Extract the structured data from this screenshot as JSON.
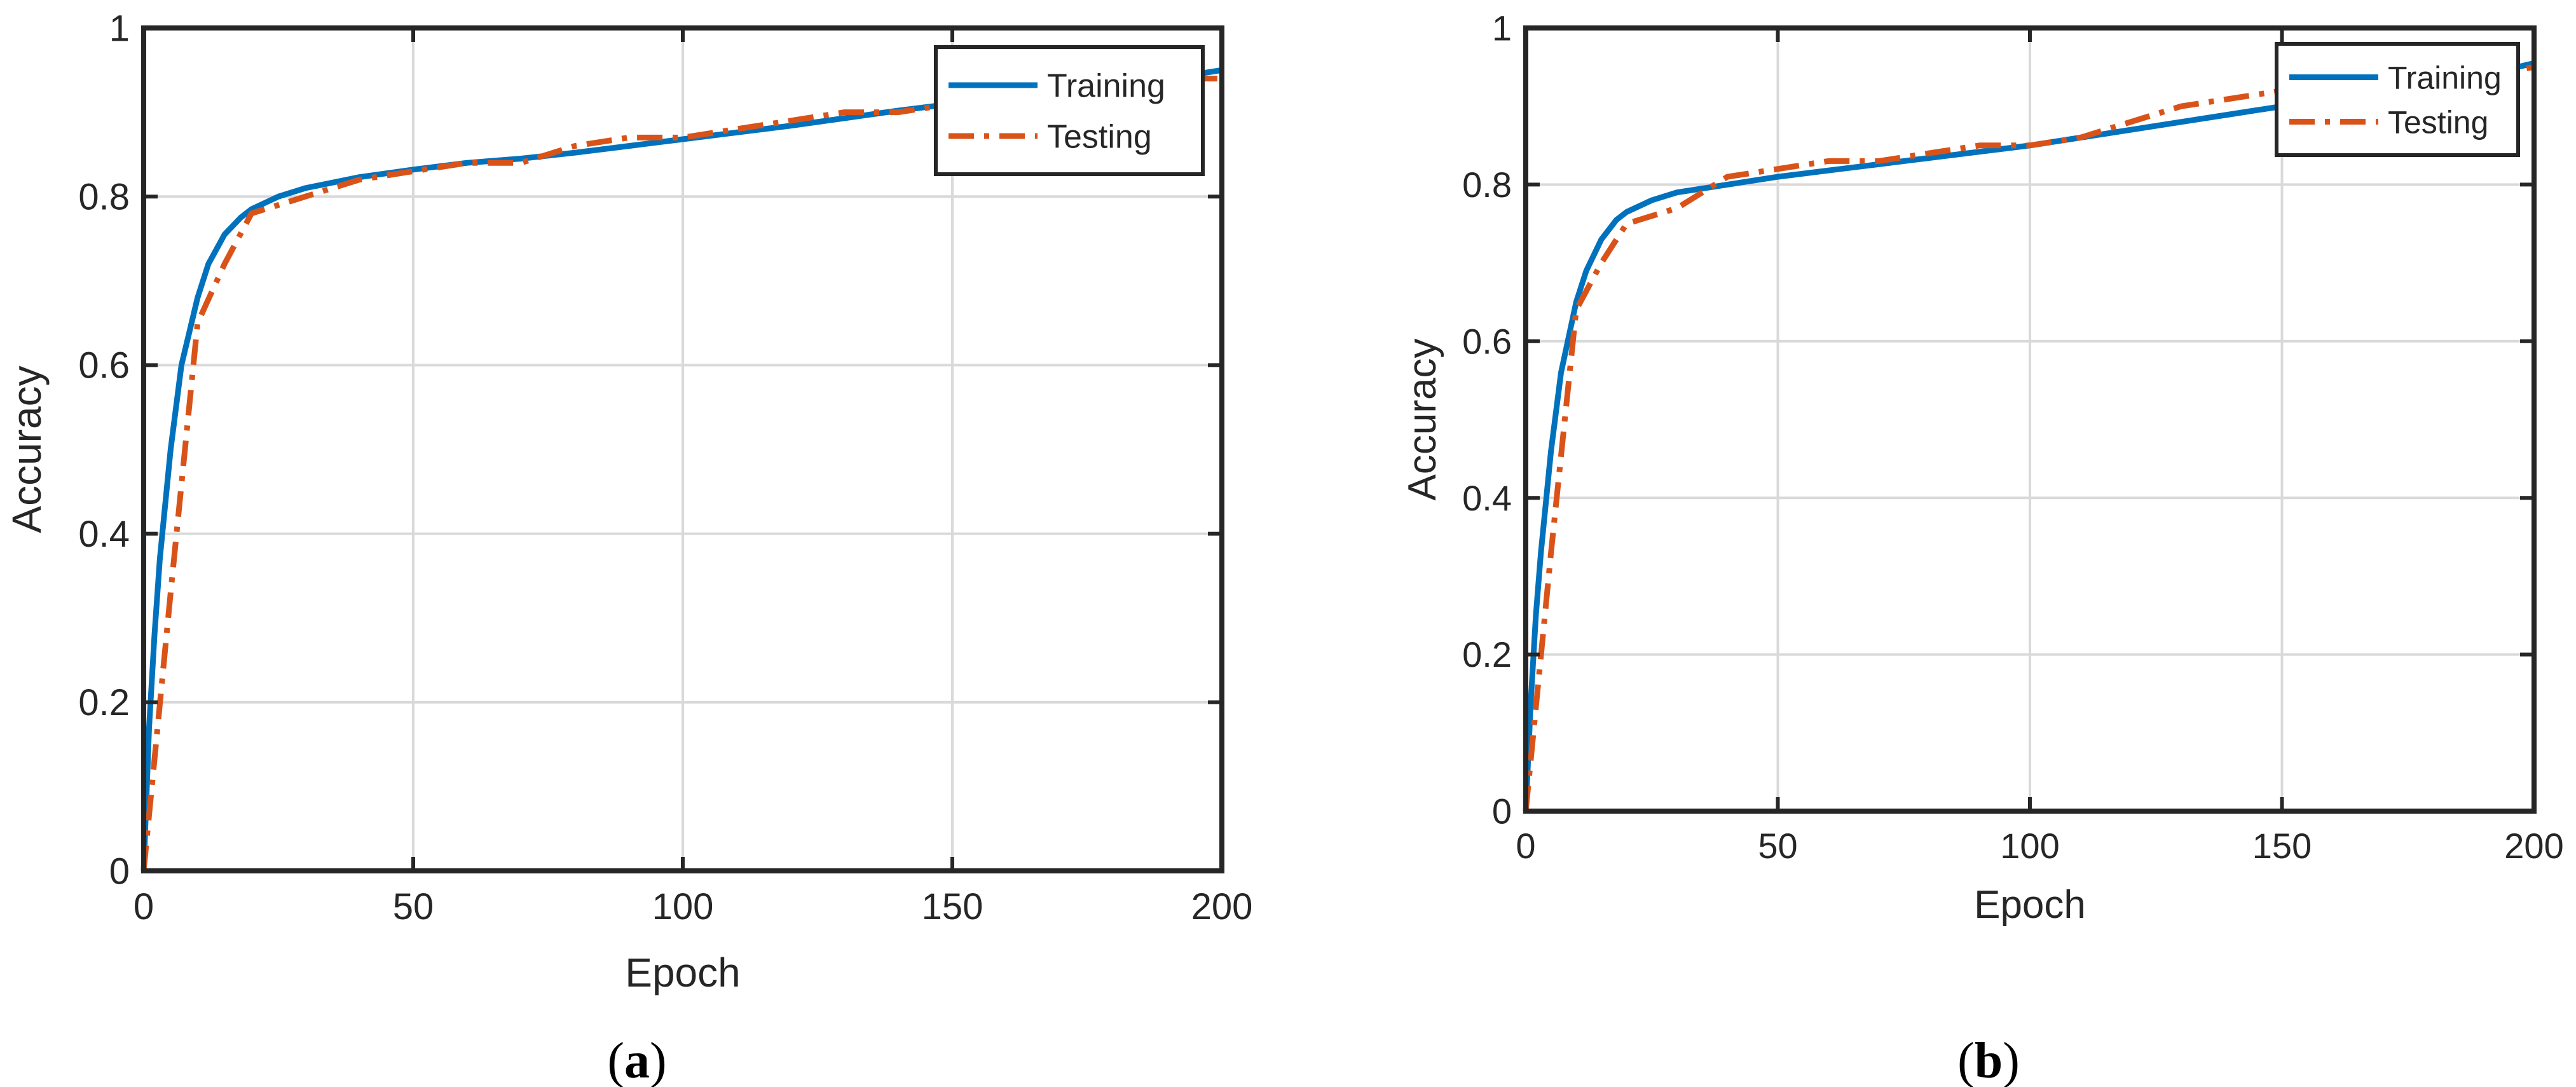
{
  "chart_data": [
    {
      "type": "line",
      "panel_label": "(a)",
      "title": "",
      "xlabel": "Epoch",
      "ylabel": "Accuracy",
      "xlim": [
        0,
        200
      ],
      "ylim": [
        0,
        1
      ],
      "x_ticks": [
        "0",
        "50",
        "100",
        "150",
        "200"
      ],
      "y_ticks": [
        "0",
        "0.2",
        "0.4",
        "0.6",
        "0.8",
        "1"
      ],
      "grid": true,
      "legend_position": "top-right",
      "series": [
        {
          "name": "Training",
          "color": "#0072BD",
          "line_style": "solid",
          "x": [
            0,
            1,
            2,
            3,
            5,
            7,
            10,
            12,
            15,
            18,
            20,
            25,
            30,
            40,
            50,
            60,
            70,
            80,
            90,
            100,
            110,
            120,
            130,
            140,
            150,
            160,
            170,
            180,
            190,
            200
          ],
          "y": [
            0.0,
            0.17,
            0.28,
            0.37,
            0.5,
            0.6,
            0.68,
            0.72,
            0.755,
            0.775,
            0.785,
            0.8,
            0.81,
            0.823,
            0.832,
            0.84,
            0.845,
            0.852,
            0.86,
            0.868,
            0.876,
            0.884,
            0.893,
            0.902,
            0.91,
            0.918,
            0.926,
            0.933,
            0.94,
            0.95
          ]
        },
        {
          "name": "Testing",
          "color": "#D95319",
          "line_style": "dash-dot",
          "x": [
            0,
            5,
            10,
            15,
            20,
            30,
            40,
            50,
            60,
            70,
            80,
            90,
            100,
            110,
            120,
            130,
            140,
            150,
            160,
            170,
            180,
            190,
            200
          ],
          "y": [
            0.0,
            0.33,
            0.65,
            0.72,
            0.78,
            0.8,
            0.82,
            0.83,
            0.84,
            0.84,
            0.86,
            0.87,
            0.87,
            0.88,
            0.89,
            0.9,
            0.9,
            0.91,
            0.92,
            0.92,
            0.93,
            0.94,
            0.94
          ]
        }
      ]
    },
    {
      "type": "line",
      "panel_label": "(b)",
      "title": "",
      "xlabel": "Epoch",
      "ylabel": "Accuracy",
      "xlim": [
        0,
        200
      ],
      "ylim": [
        0,
        1
      ],
      "x_ticks": [
        "0",
        "50",
        "100",
        "150",
        "200"
      ],
      "y_ticks": [
        "0",
        "0.2",
        "0.4",
        "0.6",
        "0.8",
        "1"
      ],
      "grid": true,
      "legend_position": "top-right",
      "series": [
        {
          "name": "Training",
          "color": "#0072BD",
          "line_style": "solid",
          "x": [
            0,
            1,
            2,
            3,
            5,
            7,
            10,
            12,
            15,
            18,
            20,
            25,
            30,
            40,
            50,
            60,
            70,
            80,
            90,
            100,
            110,
            120,
            130,
            140,
            150,
            160,
            170,
            180,
            190,
            200
          ],
          "y": [
            0.0,
            0.14,
            0.25,
            0.33,
            0.46,
            0.56,
            0.65,
            0.69,
            0.73,
            0.755,
            0.765,
            0.78,
            0.79,
            0.8,
            0.81,
            0.818,
            0.826,
            0.834,
            0.842,
            0.85,
            0.86,
            0.87,
            0.88,
            0.89,
            0.9,
            0.91,
            0.92,
            0.93,
            0.94,
            0.955
          ]
        },
        {
          "name": "Testing",
          "color": "#D95319",
          "line_style": "dash-dot",
          "x": [
            0,
            5,
            10,
            15,
            20,
            30,
            40,
            50,
            60,
            70,
            80,
            90,
            100,
            110,
            120,
            130,
            140,
            150,
            160,
            170,
            180,
            190,
            200
          ],
          "y": [
            0.0,
            0.33,
            0.64,
            0.7,
            0.75,
            0.77,
            0.81,
            0.82,
            0.83,
            0.83,
            0.84,
            0.85,
            0.85,
            0.86,
            0.88,
            0.9,
            0.91,
            0.92,
            0.92,
            0.92,
            0.93,
            0.94,
            0.95
          ]
        }
      ]
    }
  ]
}
